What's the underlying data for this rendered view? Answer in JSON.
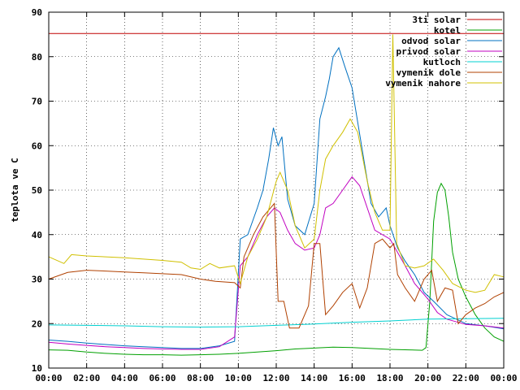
{
  "chart_data": {
    "type": "line",
    "title": "",
    "xlabel": "",
    "ylabel": "teplota ve C",
    "xlim": [
      0,
      24
    ],
    "ylim": [
      10,
      90
    ],
    "x_ticks": [
      "00:00",
      "02:00",
      "04:00",
      "06:00",
      "08:00",
      "10:00",
      "12:00",
      "14:00",
      "16:00",
      "18:00",
      "20:00",
      "22:00",
      "00:00"
    ],
    "y_ticks": [
      10,
      20,
      30,
      40,
      50,
      60,
      70,
      80,
      90
    ],
    "legend_position": "top-right",
    "series": [
      {
        "name": "3ti solar",
        "color": "#c00000",
        "points": [
          [
            0,
            85.2
          ],
          [
            24,
            85.2
          ]
        ]
      },
      {
        "name": "kotel",
        "color": "#00a000",
        "points": [
          [
            0,
            14.1
          ],
          [
            1,
            14.0
          ],
          [
            2,
            13.6
          ],
          [
            3,
            13.3
          ],
          [
            4,
            13.1
          ],
          [
            5,
            13.0
          ],
          [
            6,
            13.0
          ],
          [
            7,
            12.9
          ],
          [
            8,
            13.0
          ],
          [
            9,
            13.1
          ],
          [
            10,
            13.3
          ],
          [
            11,
            13.6
          ],
          [
            12,
            13.9
          ],
          [
            13,
            14.3
          ],
          [
            14,
            14.5
          ],
          [
            15,
            14.7
          ],
          [
            16,
            14.6
          ],
          [
            17,
            14.4
          ],
          [
            18,
            14.2
          ],
          [
            19,
            14.1
          ],
          [
            19.7,
            14.0
          ],
          [
            19.9,
            14.6
          ],
          [
            20.1,
            25
          ],
          [
            20.3,
            43
          ],
          [
            20.5,
            49.5
          ],
          [
            20.7,
            51.5
          ],
          [
            20.9,
            50
          ],
          [
            21.1,
            44
          ],
          [
            21.3,
            36
          ],
          [
            21.6,
            30
          ],
          [
            22,
            26
          ],
          [
            22.5,
            22
          ],
          [
            23,
            19
          ],
          [
            23.5,
            17
          ],
          [
            24,
            16
          ]
        ]
      },
      {
        "name": "odvod solar",
        "color": "#0070c0",
        "points": [
          [
            0,
            16.3
          ],
          [
            1,
            16.0
          ],
          [
            2,
            15.6
          ],
          [
            3,
            15.3
          ],
          [
            4,
            15.0
          ],
          [
            5,
            14.8
          ],
          [
            6,
            14.6
          ],
          [
            7,
            14.4
          ],
          [
            8,
            14.4
          ],
          [
            9,
            15
          ],
          [
            9.8,
            16
          ],
          [
            10.1,
            39
          ],
          [
            10.5,
            40
          ],
          [
            11,
            46
          ],
          [
            11.3,
            50
          ],
          [
            11.6,
            57
          ],
          [
            11.85,
            64
          ],
          [
            12.1,
            60
          ],
          [
            12.3,
            62
          ],
          [
            12.6,
            48
          ],
          [
            13,
            42
          ],
          [
            13.5,
            40
          ],
          [
            14,
            47
          ],
          [
            14.3,
            66
          ],
          [
            14.6,
            71
          ],
          [
            14.8,
            75
          ],
          [
            15,
            80
          ],
          [
            15.3,
            82
          ],
          [
            15.6,
            78
          ],
          [
            16,
            73
          ],
          [
            16.5,
            60
          ],
          [
            17,
            47
          ],
          [
            17.4,
            44
          ],
          [
            17.8,
            46
          ],
          [
            18.0,
            42
          ],
          [
            18.4,
            37
          ],
          [
            18.8,
            34
          ],
          [
            19.3,
            31
          ],
          [
            19.8,
            27
          ],
          [
            20.3,
            25
          ],
          [
            21,
            22
          ],
          [
            22,
            20
          ],
          [
            23,
            19.5
          ],
          [
            24,
            18.8
          ]
        ]
      },
      {
        "name": "privod solar",
        "color": "#c000c0",
        "points": [
          [
            0,
            15.8
          ],
          [
            1,
            15.4
          ],
          [
            2,
            15.1
          ],
          [
            3,
            14.8
          ],
          [
            4,
            14.6
          ],
          [
            5,
            14.4
          ],
          [
            6,
            14.3
          ],
          [
            7,
            14.2
          ],
          [
            8,
            14.2
          ],
          [
            9,
            14.8
          ],
          [
            9.8,
            17
          ],
          [
            10.1,
            33
          ],
          [
            10.5,
            35
          ],
          [
            11,
            40
          ],
          [
            11.5,
            44
          ],
          [
            11.9,
            46
          ],
          [
            12.2,
            45
          ],
          [
            12.6,
            41
          ],
          [
            13,
            38
          ],
          [
            13.5,
            36.5
          ],
          [
            14,
            37
          ],
          [
            14.3,
            40
          ],
          [
            14.6,
            46
          ],
          [
            15,
            47
          ],
          [
            15.5,
            50
          ],
          [
            16,
            53
          ],
          [
            16.4,
            51
          ],
          [
            16.8,
            46
          ],
          [
            17.2,
            41
          ],
          [
            17.6,
            40
          ],
          [
            18,
            39
          ],
          [
            18.4,
            36
          ],
          [
            18.8,
            33
          ],
          [
            19.3,
            29
          ],
          [
            20,
            25.5
          ],
          [
            20.5,
            22.5
          ],
          [
            21,
            21
          ],
          [
            22,
            19.8
          ],
          [
            23,
            19.5
          ],
          [
            24,
            19
          ]
        ]
      },
      {
        "name": "kutloch",
        "color": "#00d0d0",
        "points": [
          [
            0,
            19.7
          ],
          [
            2,
            19.6
          ],
          [
            4,
            19.5
          ],
          [
            6,
            19.3
          ],
          [
            8,
            19.2
          ],
          [
            10,
            19.3
          ],
          [
            12,
            19.6
          ],
          [
            14,
            19.9
          ],
          [
            16,
            20.3
          ],
          [
            18,
            20.6
          ],
          [
            20,
            21.0
          ],
          [
            22,
            21.1
          ],
          [
            24,
            21.2
          ]
        ]
      },
      {
        "name": "vymenik dole",
        "color": "#b04000",
        "points": [
          [
            0,
            30
          ],
          [
            1,
            31.5
          ],
          [
            2,
            32
          ],
          [
            3,
            31.8
          ],
          [
            4,
            31.6
          ],
          [
            5,
            31.4
          ],
          [
            6,
            31.2
          ],
          [
            7,
            31.0
          ],
          [
            8,
            30.0
          ],
          [
            8.8,
            29.5
          ],
          [
            9.8,
            29.2
          ],
          [
            10.1,
            28
          ],
          [
            10.3,
            35
          ],
          [
            10.8,
            40
          ],
          [
            11.3,
            44
          ],
          [
            11.9,
            47
          ],
          [
            12.1,
            25
          ],
          [
            12.4,
            25
          ],
          [
            12.7,
            19
          ],
          [
            13.2,
            19
          ],
          [
            13.7,
            24
          ],
          [
            14.0,
            38
          ],
          [
            14.3,
            38
          ],
          [
            14.6,
            22
          ],
          [
            15,
            24
          ],
          [
            15.5,
            27
          ],
          [
            16,
            29
          ],
          [
            16.4,
            23.5
          ],
          [
            16.8,
            28
          ],
          [
            17.2,
            38
          ],
          [
            17.6,
            39
          ],
          [
            18.0,
            37
          ],
          [
            18.2,
            38
          ],
          [
            18.4,
            31
          ],
          [
            18.8,
            28
          ],
          [
            19.3,
            25
          ],
          [
            19.8,
            30
          ],
          [
            20.2,
            32
          ],
          [
            20.5,
            25
          ],
          [
            20.9,
            28
          ],
          [
            21.3,
            27.5
          ],
          [
            21.6,
            20
          ],
          [
            22,
            22
          ],
          [
            22.5,
            23.5
          ],
          [
            23,
            24.5
          ],
          [
            23.5,
            26
          ],
          [
            24,
            27
          ]
        ]
      },
      {
        "name": "vymenik nahore",
        "color": "#d0c000",
        "points": [
          [
            0,
            35
          ],
          [
            0.8,
            33.5
          ],
          [
            1.2,
            35.5
          ],
          [
            2,
            35.2
          ],
          [
            3,
            35.0
          ],
          [
            4,
            34.8
          ],
          [
            5,
            34.5
          ],
          [
            6,
            34.2
          ],
          [
            7,
            33.8
          ],
          [
            7.5,
            32.5
          ],
          [
            8,
            32.2
          ],
          [
            8.5,
            33.5
          ],
          [
            9,
            32.5
          ],
          [
            9.8,
            33
          ],
          [
            10.1,
            29
          ],
          [
            10.5,
            35
          ],
          [
            11,
            39
          ],
          [
            11.5,
            44
          ],
          [
            12,
            52
          ],
          [
            12.2,
            54
          ],
          [
            12.6,
            50
          ],
          [
            13,
            42
          ],
          [
            13.5,
            37
          ],
          [
            14,
            39
          ],
          [
            14.3,
            50
          ],
          [
            14.6,
            57
          ],
          [
            15,
            60
          ],
          [
            15.5,
            63
          ],
          [
            15.9,
            66
          ],
          [
            16.3,
            63
          ],
          [
            16.8,
            52
          ],
          [
            17.2,
            45
          ],
          [
            17.6,
            41
          ],
          [
            18.0,
            41
          ],
          [
            18.15,
            85
          ],
          [
            18.35,
            38
          ],
          [
            18.8,
            33
          ],
          [
            19.3,
            32.5
          ],
          [
            19.8,
            33
          ],
          [
            20.3,
            34.5
          ],
          [
            20.8,
            32
          ],
          [
            21.3,
            29
          ],
          [
            22,
            27.5
          ],
          [
            22.5,
            27
          ],
          [
            23,
            27.5
          ],
          [
            23.5,
            31
          ],
          [
            24,
            30.5
          ]
        ]
      }
    ]
  }
}
